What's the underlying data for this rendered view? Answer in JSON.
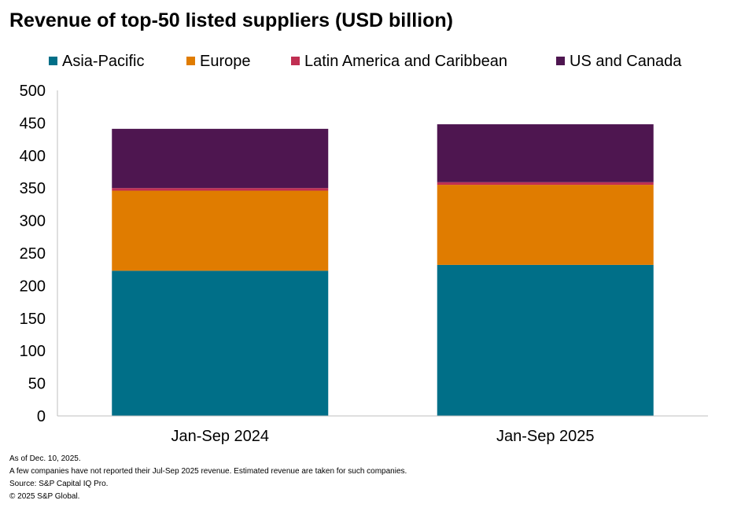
{
  "chart_data": {
    "type": "bar",
    "stacked": true,
    "title": "Revenue of top-50 listed suppliers (USD billion)",
    "categories": [
      "Jan-Sep 2024",
      "Jan-Sep 2025"
    ],
    "series": [
      {
        "name": "Asia-Pacific",
        "color": "#006F88",
        "values": [
          223,
          232
        ]
      },
      {
        "name": "Europe",
        "color": "#E07C00",
        "values": [
          123,
          123
        ]
      },
      {
        "name": "Latin America and Caribbean",
        "color": "#C02F52",
        "values": [
          4,
          4
        ]
      },
      {
        "name": "US and Canada",
        "color": "#4E1650",
        "values": [
          91,
          89
        ]
      }
    ],
    "ylim": [
      0,
      500
    ],
    "yticks": [
      0,
      50,
      100,
      150,
      200,
      250,
      300,
      350,
      400,
      450,
      500
    ],
    "xlabel": "",
    "ylabel": "",
    "legend_position": "top",
    "grid": false
  },
  "notes": [
    "As of Dec. 10, 2025.",
    "A few companies have not reported their Jul-Sep 2025 revenue. Estimated revenue are taken for such companies.",
    "Source: S&P Capital IQ Pro.",
    "© 2025 S&P Global."
  ]
}
